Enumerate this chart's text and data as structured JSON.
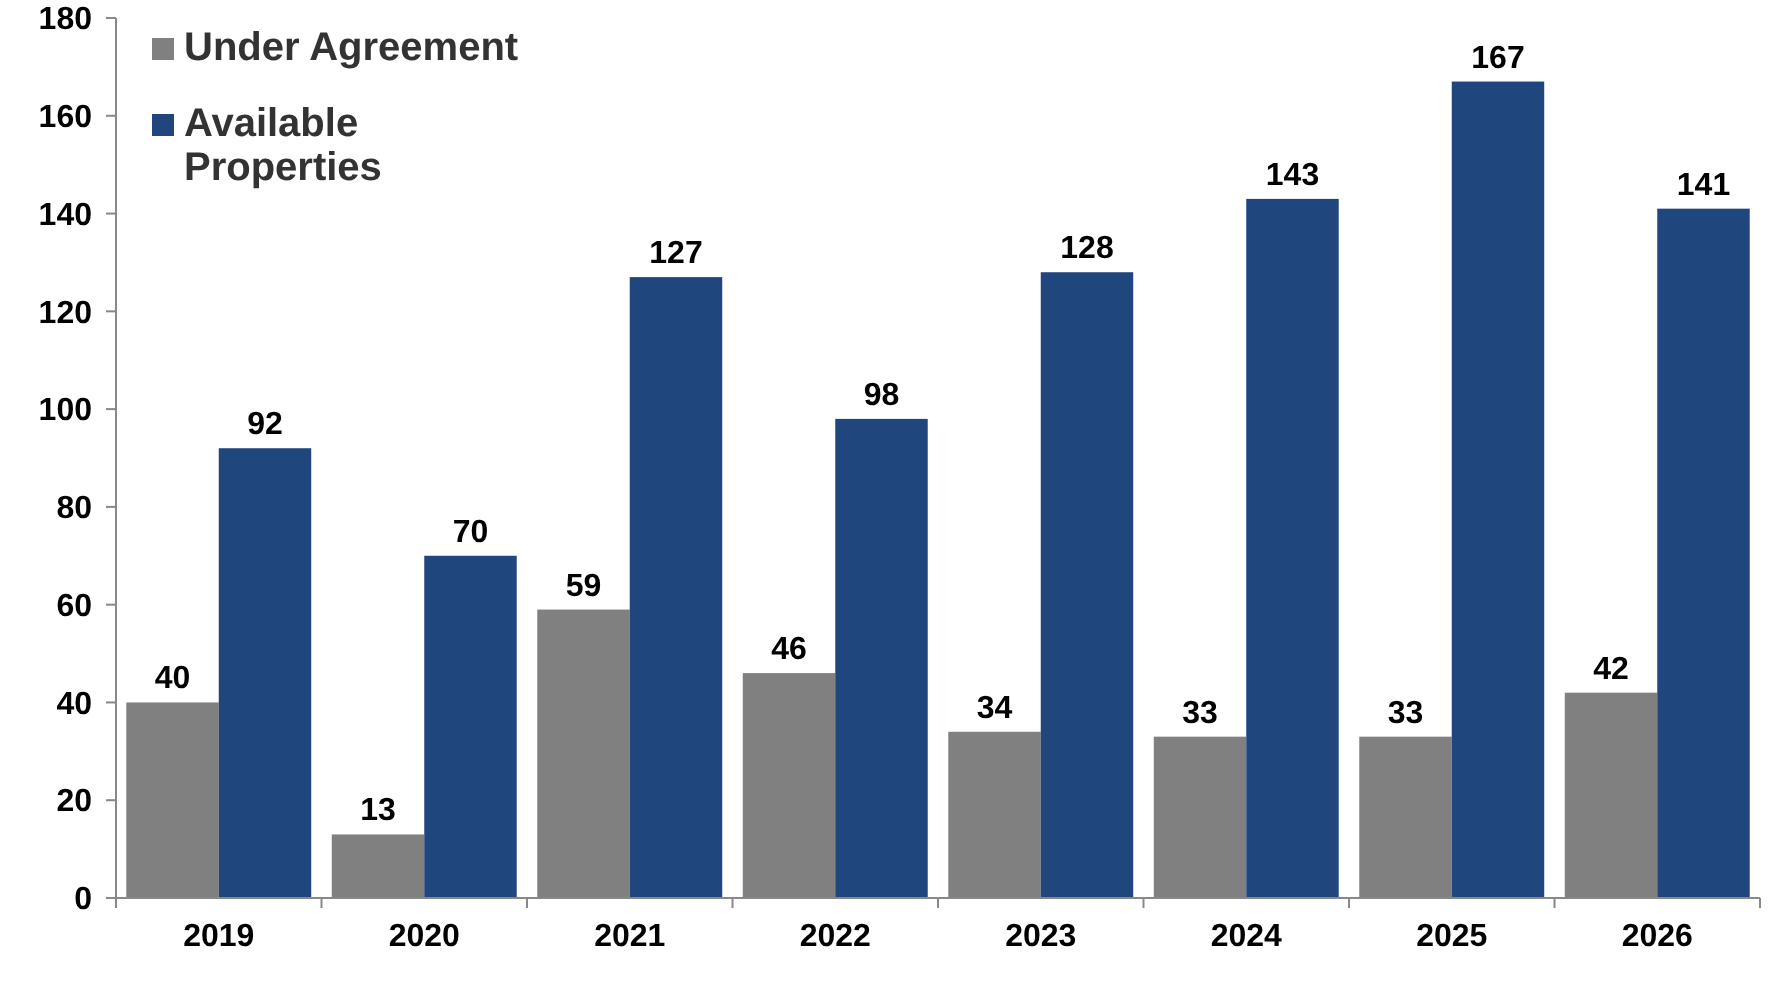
{
  "chart_data": {
    "type": "bar",
    "categories": [
      "2019",
      "2020",
      "2021",
      "2022",
      "2023",
      "2024",
      "2025",
      "2026"
    ],
    "series": [
      {
        "name": "Under Agreement",
        "color": "#808080",
        "values": [
          40,
          13,
          59,
          46,
          34,
          33,
          33,
          42
        ]
      },
      {
        "name": "Available Properties",
        "color": "#1f477d",
        "values": [
          92,
          70,
          127,
          98,
          128,
          143,
          167,
          141
        ]
      }
    ],
    "ylim": [
      0,
      180
    ],
    "yticks": [
      0,
      20,
      40,
      60,
      80,
      100,
      120,
      140,
      160,
      180
    ],
    "grid": false,
    "legend": "top left",
    "data_labels": true
  }
}
